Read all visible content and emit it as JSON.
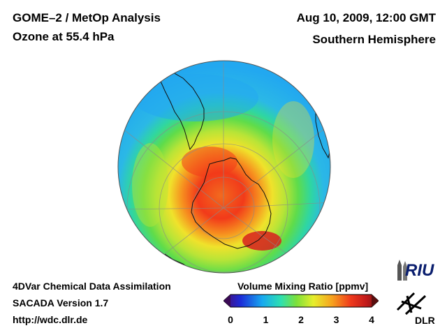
{
  "header": {
    "title": "GOME–2 / MetOp Analysis",
    "subtitle": "Ozone at 55.4 hPa",
    "datetime": "Aug 10, 2009, 12:00 GMT",
    "hemisphere": "Southern Hemisphere"
  },
  "footer": {
    "line1": "4DVar Chemical Data Assimilation",
    "line2": "SACADA Version 1.7",
    "line3": "http://wdc.dlr.de"
  },
  "colorbar": {
    "title": "Volume Mixing Ratio [ppmv]",
    "ticks": [
      "0",
      "1",
      "2",
      "3",
      "4"
    ],
    "min": 0,
    "max": 4,
    "colors": [
      "#4b0a6e",
      "#1c2bd8",
      "#17a9f0",
      "#2ee0b0",
      "#7ce03a",
      "#e6ee2c",
      "#f7a21e",
      "#ef3a1c",
      "#c21a1a",
      "#7a1212"
    ]
  },
  "logos": {
    "riu": "RIU",
    "dlr": "DLR"
  },
  "map": {
    "projection": "orthographic",
    "center": "South Pole",
    "variable": "ozone volume mixing ratio",
    "approx_ranges_ppmv": {
      "outer_tropics": 1.2,
      "midlatitude_ring": 2.2,
      "polar_vortex_max": 3.6
    }
  }
}
